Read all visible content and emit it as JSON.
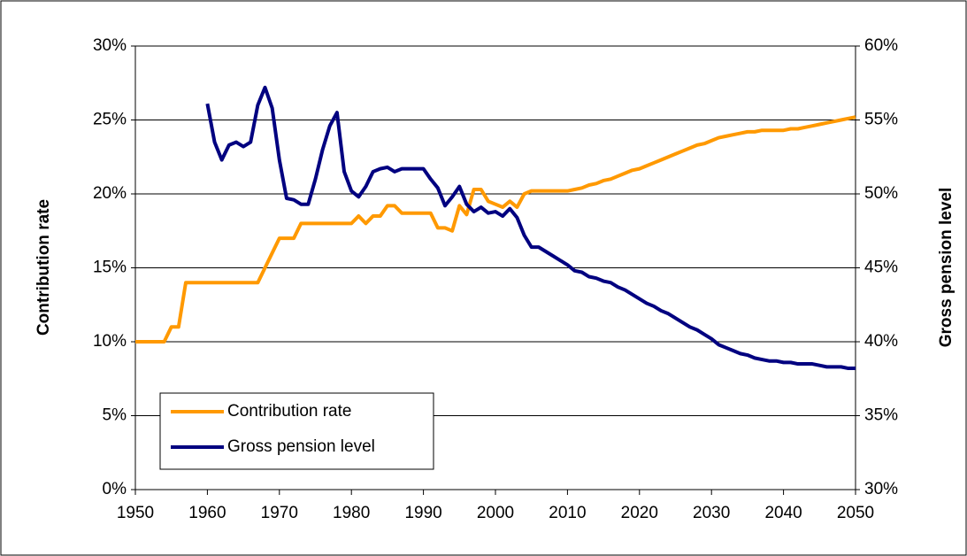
{
  "chart_data": {
    "type": "line",
    "x": [
      1950,
      1951,
      1952,
      1953,
      1954,
      1955,
      1956,
      1957,
      1958,
      1959,
      1960,
      1961,
      1962,
      1963,
      1964,
      1965,
      1966,
      1967,
      1968,
      1969,
      1970,
      1971,
      1972,
      1973,
      1974,
      1975,
      1976,
      1977,
      1978,
      1979,
      1980,
      1981,
      1982,
      1983,
      1984,
      1985,
      1986,
      1987,
      1988,
      1989,
      1990,
      1991,
      1992,
      1993,
      1994,
      1995,
      1996,
      1997,
      1998,
      1999,
      2000,
      2001,
      2002,
      2003,
      2004,
      2005,
      2006,
      2007,
      2008,
      2009,
      2010,
      2011,
      2012,
      2013,
      2014,
      2015,
      2016,
      2017,
      2018,
      2019,
      2020,
      2021,
      2022,
      2023,
      2024,
      2025,
      2026,
      2027,
      2028,
      2029,
      2030,
      2031,
      2032,
      2033,
      2034,
      2035,
      2036,
      2037,
      2038,
      2039,
      2040,
      2041,
      2042,
      2043,
      2044,
      2045,
      2046,
      2047,
      2048,
      2049,
      2050
    ],
    "series": [
      {
        "name": "Contribution rate",
        "color": "#ff9900",
        "values": [
          10,
          10,
          10,
          10,
          10,
          11,
          11,
          14,
          14,
          14,
          14,
          14,
          14,
          14,
          14,
          14,
          14,
          14,
          15,
          16,
          17,
          17,
          17,
          18,
          18,
          18,
          18,
          18,
          18,
          18,
          18,
          18.5,
          18,
          18.5,
          18.5,
          19.2,
          19.2,
          18.7,
          18.7,
          18.7,
          18.7,
          18.7,
          17.7,
          17.7,
          17.5,
          19.2,
          18.6,
          20.3,
          20.3,
          19.5,
          19.3,
          19.1,
          19.5,
          19.1,
          20,
          20.2,
          20.2,
          20.2,
          20.2,
          20.2,
          20.2,
          20.3,
          20.4,
          20.6,
          20.7,
          20.9,
          21,
          21.2,
          21.4,
          21.6,
          21.7,
          21.9,
          22.1,
          22.3,
          22.5,
          22.7,
          22.9,
          23.1,
          23.3,
          23.4,
          23.6,
          23.8,
          23.9,
          24,
          24.1,
          24.2,
          24.2,
          24.3,
          24.3,
          24.3,
          24.3,
          24.4,
          24.4,
          24.5,
          24.6,
          24.7,
          24.8,
          24.9,
          25,
          25.1,
          25.2
        ]
      },
      {
        "name": "Gross pension level",
        "color": "#000080",
        "axis": "y2",
        "values": [
          null,
          null,
          null,
          null,
          null,
          null,
          null,
          null,
          null,
          null,
          56.1,
          53.5,
          52.3,
          53.3,
          53.5,
          53.2,
          53.5,
          56,
          57.2,
          55.8,
          52.3,
          49.7,
          49.6,
          49.3,
          49.3,
          51,
          53,
          54.6,
          55.5,
          51.5,
          50.2,
          49.8,
          50.5,
          51.5,
          51.7,
          51.8,
          51.5,
          51.7,
          51.7,
          51.7,
          51.7,
          51,
          50.4,
          49.2,
          49.8,
          50.5,
          49.3,
          48.8,
          49.1,
          48.7,
          48.8,
          48.5,
          49,
          48.4,
          47.2,
          46.4,
          46.4,
          46.1,
          45.8,
          45.5,
          45.2,
          44.8,
          44.7,
          44.4,
          44.3,
          44.1,
          44,
          43.7,
          43.5,
          43.2,
          42.9,
          42.6,
          42.4,
          42.1,
          41.9,
          41.6,
          41.3,
          41,
          40.8,
          40.5,
          40.2,
          39.8,
          39.6,
          39.4,
          39.2,
          39.1,
          38.9,
          38.8,
          38.7,
          38.7,
          38.6,
          38.6,
          38.5,
          38.5,
          38.5,
          38.4,
          38.3,
          38.3,
          38.3,
          38.2,
          38.2
        ]
      }
    ],
    "y_label": "Contribution rate",
    "y2_label": "Gross pension level",
    "xlim": [
      1950,
      2050
    ],
    "xticks": [
      1950,
      1960,
      1970,
      1980,
      1990,
      2000,
      2010,
      2020,
      2030,
      2040,
      2050
    ],
    "ylim": [
      0,
      30
    ],
    "yticks": [
      {
        "value": 0,
        "label": "0%"
      },
      {
        "value": 5,
        "label": "5%"
      },
      {
        "value": 10,
        "label": "10%"
      },
      {
        "value": 15,
        "label": "15%"
      },
      {
        "value": 20,
        "label": "20%"
      },
      {
        "value": 25,
        "label": "25%"
      },
      {
        "value": 30,
        "label": "30%"
      }
    ],
    "y2lim": [
      30,
      60
    ],
    "y2ticks": [
      {
        "value": 30,
        "label": "30%"
      },
      {
        "value": 35,
        "label": "35%"
      },
      {
        "value": 40,
        "label": "40%"
      },
      {
        "value": 45,
        "label": "45%"
      },
      {
        "value": 50,
        "label": "50%"
      },
      {
        "value": 55,
        "label": "55%"
      },
      {
        "value": 60,
        "label": "60%"
      }
    ],
    "grid": true,
    "legend": "lower left"
  }
}
